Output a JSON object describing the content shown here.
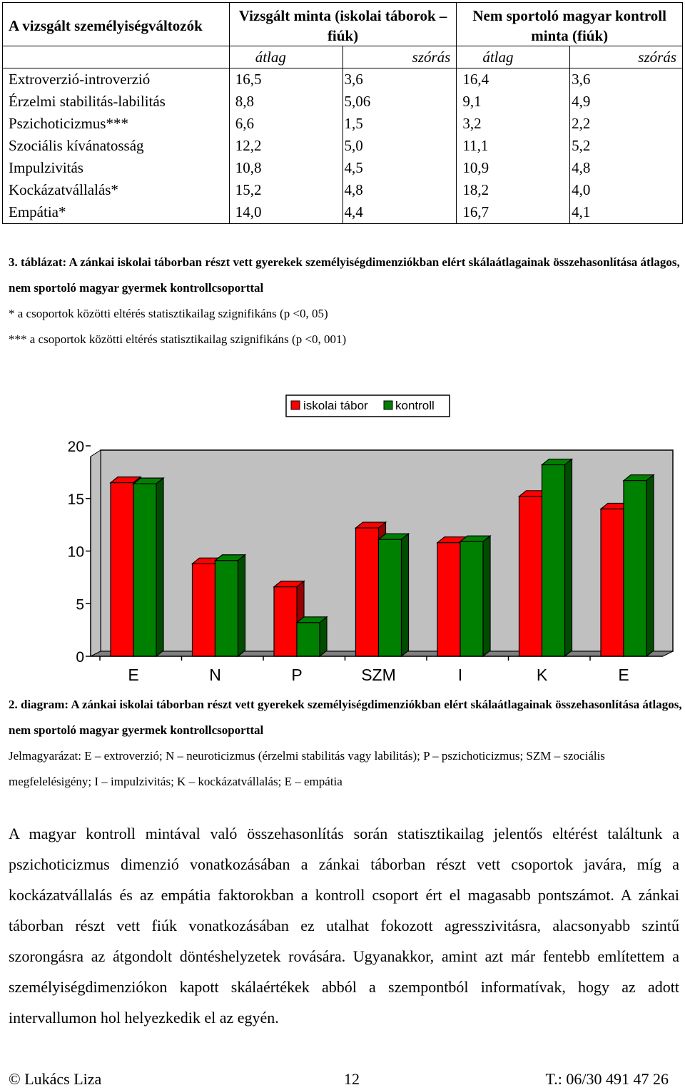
{
  "table": {
    "header_col1": "A vizsgált személyiségváltozók",
    "group1": "Vizsgált minta (iskolai táborok – fiúk)",
    "group2": "Nem sportoló magyar kontroll minta (fiúk)",
    "sub": {
      "mean": "átlag",
      "sd": "szórás"
    },
    "rows": [
      {
        "label": "Extroverzió-introverzió",
        "m1": "16,5",
        "s1": "3,6",
        "m2": "16,4",
        "s2": "3,6"
      },
      {
        "label": "Érzelmi stabilitás-labilitás",
        "m1": "8,8",
        "s1": "5,06",
        "m2": "9,1",
        "s2": "4,9"
      },
      {
        "label": "Pszichoticizmus***",
        "m1": "6,6",
        "s1": "1,5",
        "m2": "3,2",
        "s2": "2,2"
      },
      {
        "label": "Szociális kívánatosság",
        "m1": "12,2",
        "s1": "5,0",
        "m2": "11,1",
        "s2": "5,2"
      },
      {
        "label": "Impulzivitás",
        "m1": "10,8",
        "s1": "4,5",
        "m2": "10,9",
        "s2": "4,8"
      },
      {
        "label": "Kockázatvállalás*",
        "m1": "15,2",
        "s1": "4,8",
        "m2": "18,2",
        "s2": "4,0"
      },
      {
        "label": "Empátia*",
        "m1": "14,0",
        "s1": "4,4",
        "m2": "16,7",
        "s2": "4,1"
      }
    ]
  },
  "table_caption": {
    "bold": "3. táblázat: A zánkai iskolai táborban részt vett gyerekek személyiségdimenziókban elért skálaátlagainak összehasonlítása átlagos, nem sportoló magyar gyermek kontrollcsoporttal",
    "note1": "* a csoportok közötti eltérés statisztikailag szignifikáns (p <0, 05)",
    "note2": "*** a csoportok közötti eltérés statisztikailag szignifikáns (p <0, 001)"
  },
  "chart_data": {
    "type": "bar",
    "categories": [
      "E",
      "N",
      "P",
      "SZM",
      "I",
      "K",
      "E"
    ],
    "series": [
      {
        "name": "iskolai tábor",
        "color": "#ff0000",
        "values": [
          16.5,
          8.8,
          6.6,
          12.2,
          10.8,
          15.2,
          14.0
        ]
      },
      {
        "name": "kontroll",
        "color": "#008000",
        "values": [
          16.4,
          9.1,
          3.2,
          11.1,
          10.9,
          18.2,
          16.7
        ]
      }
    ],
    "yticks": [
      "0",
      "5",
      "10",
      "15",
      "20"
    ],
    "ylim": [
      0,
      20
    ],
    "legend_position": "top",
    "grid": false,
    "wall_color": "#c0c0c0"
  },
  "diagram_caption": {
    "bold": "2. diagram: A zánkai iskolai táborban részt vett gyerekek személyiségdimenziókban elért skálaátlagainak összehasonlítása átlagos, nem sportoló magyar gyermek kontrollcsoporttal",
    "legend": "Jelmagyarázat: E – extroverzió; N – neuroticizmus (érzelmi stabilitás vagy labilitás); P – pszichoticizmus; SZM – szociális megfelelésigény; I – impulzivitás; K – kockázatvállalás; E – empátia"
  },
  "body_text": "A magyar kontroll mintával való összehasonlítás során statisztikailag jelentős eltérést találtunk a pszichoticizmus dimenzió vonatkozásában a zánkai táborban részt vett csoportok javára, míg a kockázatvállalás és az empátia faktorokban a kontroll csoport ért el magasabb pontszámot. A zánkai táborban részt vett fiúk vonatkozásában ez utalhat fokozott agresszivitásra, alacsonyabb szintű szorongásra az átgondolt döntéshelyzetek rovására. Ugyanakkor, amint azt már fentebb említettem a személyiségdimenziókon kapott skálaértékek abból a szempontból informatívak, hogy az adott intervallumon hol helyezkedik el az egyén.",
  "footer": {
    "left": "© Lukács Liza",
    "page": "12",
    "right": "T.: 06/30 491 47 26"
  }
}
